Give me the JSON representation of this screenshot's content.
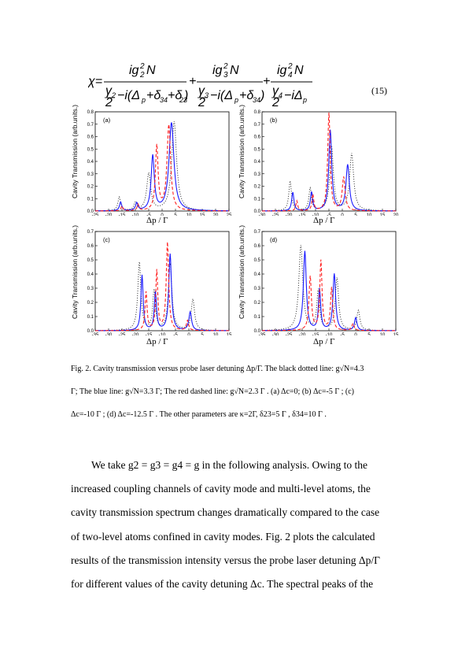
{
  "equation": {
    "lhs": "χ=",
    "terms": [
      {
        "num": "ig2²N",
        "den": "γ2/2 −i(Δp+δ34+δ23)"
      },
      {
        "num": "ig3²N",
        "den": "γ3/2 −i(Δp+δ34)"
      },
      {
        "num": "ig4²N",
        "den": "γ4/2 −iΔp"
      }
    ],
    "number": "(15)"
  },
  "ylabel": "Cavity Transmission (arb.units.)",
  "xlabel": "Δp / Γ",
  "chart_data": [
    {
      "type": "line",
      "label": "(a)",
      "xlim": [
        -25,
        25
      ],
      "ylim": [
        0,
        0.8
      ],
      "xticks": [
        -25,
        -20,
        -15,
        -10,
        -5,
        0,
        5,
        10,
        15,
        20,
        25
      ],
      "yticks": [
        0.0,
        0.1,
        0.2,
        0.3,
        0.4,
        0.5,
        0.6,
        0.7,
        0.8
      ],
      "series": [
        {
          "style": "black dotted",
          "peaks": [
            [
              -16,
              0.11,
              1.2
            ],
            [
              -10,
              0.06,
              1.2
            ],
            [
              -5,
              0.3,
              1.8
            ],
            [
              4.5,
              0.72,
              2.2
            ]
          ]
        },
        {
          "style": "blue solid",
          "peaks": [
            [
              -15.5,
              0.07,
              1.0
            ],
            [
              -9.5,
              0.06,
              1.0
            ],
            [
              -3.5,
              0.44,
              1.4
            ],
            [
              3.5,
              0.71,
              2.2
            ]
          ]
        },
        {
          "style": "red dashed",
          "peaks": [
            [
              -15,
              0.04,
              0.8
            ],
            [
              -9,
              0.05,
              0.8
            ],
            [
              -2,
              0.52,
              1.2
            ],
            [
              2.5,
              0.69,
              1.6
            ]
          ]
        }
      ]
    },
    {
      "type": "line",
      "label": "(b)",
      "xlim": [
        -30,
        20
      ],
      "ylim": [
        0,
        0.8
      ],
      "xticks": [
        -30,
        -25,
        -20,
        -15,
        -10,
        -5,
        0,
        5,
        10,
        15,
        20
      ],
      "yticks": [
        0.0,
        0.1,
        0.2,
        0.3,
        0.4,
        0.5,
        0.6,
        0.7,
        0.8
      ],
      "series": [
        {
          "style": "black dotted",
          "peaks": [
            [
              -19.5,
              0.24,
              1.2
            ],
            [
              -12,
              0.18,
              1.2
            ],
            [
              -4,
              0.52,
              1.6
            ],
            [
              3.5,
              0.46,
              1.8
            ]
          ]
        },
        {
          "style": "blue solid",
          "peaks": [
            [
              -18.5,
              0.15,
              1.0
            ],
            [
              -11.5,
              0.15,
              1.0
            ],
            [
              -4.5,
              0.65,
              1.3
            ],
            [
              2,
              0.37,
              1.5
            ]
          ]
        },
        {
          "style": "red dashed",
          "peaks": [
            [
              -17,
              0.08,
              0.8
            ],
            [
              -11,
              0.13,
              0.8
            ],
            [
              -5,
              0.79,
              1.1
            ],
            [
              0.5,
              0.27,
              1.3
            ]
          ]
        }
      ]
    },
    {
      "type": "line",
      "label": "(c)",
      "xlim": [
        -35,
        15
      ],
      "ylim": [
        0,
        0.7
      ],
      "xticks": [
        -35,
        -30,
        -25,
        -20,
        -15,
        -10,
        -5,
        0,
        5,
        10,
        15
      ],
      "yticks": [
        0.0,
        0.1,
        0.2,
        0.3,
        0.4,
        0.5,
        0.6,
        0.7
      ],
      "series": [
        {
          "style": "black dotted",
          "peaks": [
            [
              -18.5,
              0.48,
              1.4
            ],
            [
              -13,
              0.28,
              1.2
            ],
            [
              -7,
              0.47,
              1.6
            ],
            [
              1.5,
              0.22,
              1.5
            ]
          ]
        },
        {
          "style": "blue solid",
          "peaks": [
            [
              -17.5,
              0.39,
              1.0
            ],
            [
              -12.5,
              0.27,
              1.0
            ],
            [
              -7,
              0.54,
              1.2
            ],
            [
              0.5,
              0.13,
              1.2
            ]
          ]
        },
        {
          "style": "red dashed",
          "peaks": [
            [
              -16,
              0.27,
              0.9
            ],
            [
              -12,
              0.42,
              0.9
            ],
            [
              -8,
              0.62,
              1.1
            ],
            [
              -0.5,
              0.07,
              1.0
            ]
          ]
        }
      ]
    },
    {
      "type": "line",
      "label": "(d)",
      "xlim": [
        -35,
        15
      ],
      "ylim": [
        0,
        0.7
      ],
      "xticks": [
        -35,
        -30,
        -25,
        -20,
        -15,
        -10,
        -5,
        0,
        5,
        10,
        15
      ],
      "yticks": [
        0.0,
        0.1,
        0.2,
        0.3,
        0.4,
        0.5,
        0.6,
        0.7
      ],
      "series": [
        {
          "style": "black dotted",
          "peaks": [
            [
              -20.5,
              0.6,
              1.8
            ],
            [
              -14,
              0.28,
              1.3
            ],
            [
              -7,
              0.37,
              1.5
            ],
            [
              1,
              0.14,
              1.4
            ]
          ]
        },
        {
          "style": "blue solid",
          "peaks": [
            [
              -19,
              0.56,
              1.3
            ],
            [
              -13.5,
              0.29,
              1.0
            ],
            [
              -8,
              0.4,
              1.2
            ],
            [
              0,
              0.09,
              1.1
            ]
          ]
        },
        {
          "style": "red dashed",
          "peaks": [
            [
              -17,
              0.38,
              1.1
            ],
            [
              -13,
              0.49,
              1.0
            ],
            [
              -9,
              0.3,
              1.0
            ],
            [
              -1,
              0.05,
              1.0
            ]
          ]
        }
      ]
    }
  ],
  "caption": {
    "line1": "Fig. 2. Cavity transmission versus probe laser detuning Δp/Γ. The black dotted line: g√N=4.3",
    "line2": "Γ; The blue line: g√N=3.3 Γ; The red dashed line: g√N=2.3 Γ . (a) Δc=0; (b) Δc=-5 Γ ; (c)",
    "line3": "Δc=-10 Γ ; (d) Δc=-12.5 Γ . The other parameters are κ=2Γ, δ23=5 Γ , δ34=10 Γ ."
  },
  "body": {
    "line1": "We take g2 = g3 = g4 = g in the following analysis. Owing to the",
    "line2": "increased coupling channels of cavity mode and multi-level atoms, the",
    "line3": "cavity transmission spectrum changes dramatically compared to the case",
    "line4": "of two-level atoms confined in cavity modes. Fig. 2 plots the calculated",
    "line5": "results of the transmission intensity versus the probe laser detuning Δp/Γ",
    "line6": "for different values of the cavity detuning Δc. The spectral peaks of the"
  }
}
